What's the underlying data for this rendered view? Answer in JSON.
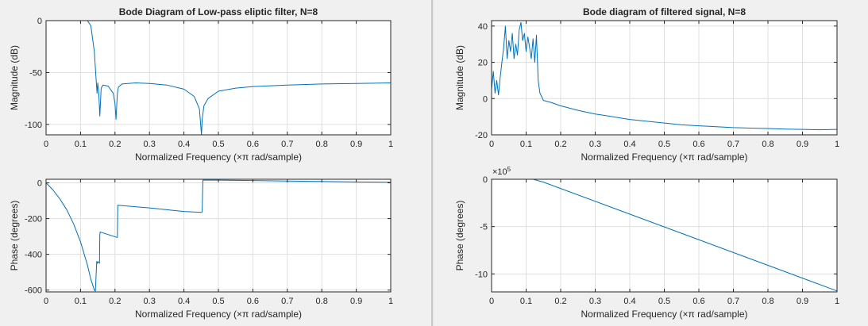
{
  "figures": {
    "left_title": "Bode Diagram of Low-pass eliptic filter, N=8",
    "right_title": "Bode diagram of filtered signal, N=8"
  },
  "chart_data": [
    {
      "id": "filter-magnitude",
      "type": "line",
      "title": "Bode Diagram of Low-pass eliptic filter, N=8",
      "xlabel": "Normalized Frequency  (×π rad/sample)",
      "ylabel": "Magnitude (dB)",
      "xlim": [
        0,
        1
      ],
      "ylim": [
        -110,
        0
      ],
      "xticks": [
        0,
        0.1,
        0.2,
        0.3,
        0.4,
        0.5,
        0.6,
        0.7,
        0.8,
        0.9,
        1
      ],
      "xticklabels": [
        "0",
        "0.1",
        "0.2",
        "0.3",
        "0.4",
        "0.5",
        "0.6",
        "0.7",
        "0.8",
        "0.9",
        "1"
      ],
      "yticks": [
        0,
        -50,
        -100
      ],
      "yticklabels": [
        "0",
        "-50",
        "-100"
      ],
      "grid": true,
      "color": "#0072bd",
      "x": [
        0,
        0.12,
        0.13,
        0.14,
        0.145,
        0.148,
        0.15,
        0.153,
        0.156,
        0.16,
        0.165,
        0.18,
        0.195,
        0.2,
        0.203,
        0.207,
        0.21,
        0.22,
        0.26,
        0.3,
        0.35,
        0.4,
        0.43,
        0.445,
        0.451,
        0.453,
        0.458,
        0.47,
        0.5,
        0.55,
        0.6,
        0.7,
        0.8,
        0.9,
        1.0
      ],
      "y": [
        0,
        0,
        -5,
        -30,
        -55,
        -70,
        -60,
        -70,
        -92,
        -65,
        -62,
        -63,
        -70,
        -80,
        -95,
        -70,
        -64,
        -61,
        -60,
        -60.5,
        -62,
        -66,
        -73,
        -85,
        -110,
        -95,
        -82,
        -75,
        -68,
        -65,
        -63.5,
        -62,
        -61,
        -60.5,
        -60
      ]
    },
    {
      "id": "filter-phase",
      "type": "line",
      "title": "",
      "xlabel": "Normalized Frequency  (×π rad/sample)",
      "ylabel": "Phase (degrees)",
      "xlim": [
        0,
        1
      ],
      "ylim": [
        -610,
        20
      ],
      "xticks": [
        0,
        0.1,
        0.2,
        0.3,
        0.4,
        0.5,
        0.6,
        0.7,
        0.8,
        0.9,
        1
      ],
      "xticklabels": [
        "0",
        "0.1",
        "0.2",
        "0.3",
        "0.4",
        "0.5",
        "0.6",
        "0.7",
        "0.8",
        "0.9",
        "1"
      ],
      "yticks": [
        0,
        -200,
        -400,
        -600
      ],
      "yticklabels": [
        "0",
        "-200",
        "-400",
        "-600"
      ],
      "grid": true,
      "color": "#0072bd",
      "x": [
        0,
        0.02,
        0.04,
        0.06,
        0.08,
        0.1,
        0.12,
        0.13,
        0.14,
        0.143,
        0.147,
        0.149,
        0.15,
        0.155,
        0.156,
        0.157,
        0.206,
        0.207,
        0.208,
        0.3,
        0.4,
        0.452,
        0.453,
        0.455,
        0.5,
        0.6,
        0.7,
        0.8,
        0.9,
        1.0
      ],
      "y": [
        0,
        -40,
        -90,
        -150,
        -230,
        -330,
        -460,
        -540,
        -600,
        -605,
        -440,
        -450,
        -440,
        -450,
        -290,
        -275,
        -305,
        -305,
        -125,
        -140,
        -160,
        -165,
        -160,
        15,
        15,
        13,
        10,
        8,
        5,
        3
      ]
    },
    {
      "id": "signal-magnitude",
      "type": "line",
      "title": "Bode diagram of filtered signal, N=8",
      "xlabel": "Normalized Frequency  (×π rad/sample)",
      "ylabel": "Magnitude (dB)",
      "xlim": [
        0,
        1
      ],
      "ylim": [
        -20,
        43
      ],
      "xticks": [
        0,
        0.1,
        0.2,
        0.3,
        0.4,
        0.5,
        0.6,
        0.7,
        0.8,
        0.9,
        1
      ],
      "xticklabels": [
        "0",
        "0.1",
        "0.2",
        "0.3",
        "0.4",
        "0.5",
        "0.6",
        "0.7",
        "0.8",
        "0.9",
        "1"
      ],
      "yticks": [
        40,
        20,
        0,
        -20
      ],
      "yticklabels": [
        "40",
        "20",
        "0",
        "-20"
      ],
      "grid": true,
      "color": "#0072bd",
      "x": [
        0,
        0.005,
        0.01,
        0.015,
        0.02,
        0.025,
        0.03,
        0.035,
        0.04,
        0.045,
        0.05,
        0.055,
        0.06,
        0.065,
        0.07,
        0.075,
        0.08,
        0.085,
        0.09,
        0.095,
        0.1,
        0.105,
        0.11,
        0.115,
        0.12,
        0.125,
        0.13,
        0.135,
        0.14,
        0.15,
        0.17,
        0.2,
        0.25,
        0.3,
        0.35,
        0.4,
        0.45,
        0.5,
        0.55,
        0.6,
        0.65,
        0.7,
        0.75,
        0.8,
        0.85,
        0.9,
        0.95,
        1.0
      ],
      "y": [
        5,
        15,
        3,
        10,
        2,
        12,
        20,
        28,
        40,
        22,
        32,
        26,
        36,
        22,
        30,
        24,
        38,
        42,
        32,
        36,
        26,
        34,
        28,
        22,
        33,
        20,
        35,
        10,
        3,
        -1,
        -2,
        -4,
        -6.5,
        -8.5,
        -10,
        -11.5,
        -12.5,
        -13.5,
        -14.5,
        -15,
        -15.5,
        -16,
        -16.3,
        -16.5,
        -16.8,
        -17,
        -17.2,
        -17
      ]
    },
    {
      "id": "signal-phase",
      "type": "line",
      "title": "",
      "xlabel": "Normalized Frequency  (×π rad/sample)",
      "ylabel": "Phase (degrees)",
      "yexponent": "×10^5",
      "xlim": [
        0,
        1
      ],
      "ylim": [
        -11.9,
        0
      ],
      "xticks": [
        0,
        0.1,
        0.2,
        0.3,
        0.4,
        0.5,
        0.6,
        0.7,
        0.8,
        0.9,
        1
      ],
      "xticklabels": [
        "0",
        "0.1",
        "0.2",
        "0.3",
        "0.4",
        "0.5",
        "0.6",
        "0.7",
        "0.8",
        "0.9",
        "1"
      ],
      "yticks": [
        0,
        -5,
        -10
      ],
      "yticklabels": [
        "0",
        "-5",
        "-10"
      ],
      "grid": true,
      "color": "#0072bd",
      "x": [
        0,
        0.12,
        0.15,
        1.0
      ],
      "y": [
        0,
        0,
        -0.3,
        -11.8
      ]
    }
  ]
}
